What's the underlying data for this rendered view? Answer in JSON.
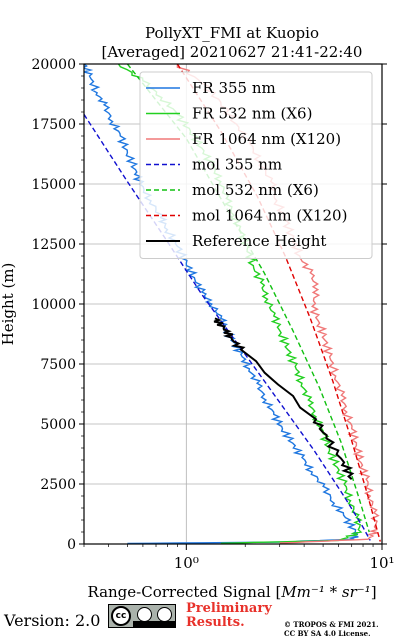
{
  "chart_data": {
    "type": "line",
    "title": "PollyXT_FMI at Kuopio",
    "subtitle": "[Averaged] 20210627 21:41-22:40",
    "xlabel": "Range-Corrected Signal [Mm⁻¹ * sr⁻¹]",
    "xlabel_plain": "Range-Corrected Signal [",
    "xlabel_math": "Mm⁻¹ * sr⁻¹",
    "xlabel_end": "]",
    "ylabel": "Height (m)",
    "xscale": "log",
    "xlim": [
      0.3,
      10
    ],
    "ylim": [
      0,
      20000
    ],
    "xticks": [
      1,
      10
    ],
    "xtick_labels": [
      "10⁰",
      "10¹"
    ],
    "yticks": [
      0,
      2500,
      5000,
      7500,
      10000,
      12500,
      15000,
      17500,
      20000
    ],
    "grid": true,
    "legend_position": "top-right",
    "series": [
      {
        "name": "FR 355 nm",
        "style": "solid",
        "color": "#1f77e0",
        "points": [
          [
            0.3,
            20000
          ],
          [
            0.32,
            19500
          ],
          [
            0.35,
            18800
          ],
          [
            0.38,
            18300
          ],
          [
            0.42,
            17600
          ],
          [
            0.46,
            17000
          ],
          [
            0.5,
            16300
          ],
          [
            0.55,
            15600
          ],
          [
            0.58,
            15000
          ],
          [
            0.66,
            14300
          ],
          [
            0.74,
            13600
          ],
          [
            0.8,
            13100
          ],
          [
            0.9,
            12400
          ],
          [
            1.0,
            11700
          ],
          [
            1.1,
            11100
          ],
          [
            1.2,
            10500
          ],
          [
            1.35,
            10000
          ],
          [
            1.5,
            9400
          ],
          [
            1.6,
            8900
          ],
          [
            1.75,
            8400
          ],
          [
            1.9,
            7900
          ],
          [
            2.1,
            7300
          ],
          [
            2.3,
            6700
          ],
          [
            2.55,
            6000
          ],
          [
            2.8,
            5400
          ],
          [
            3.1,
            4800
          ],
          [
            3.5,
            4200
          ],
          [
            3.9,
            3600
          ],
          [
            4.4,
            3000
          ],
          [
            5.0,
            2400
          ],
          [
            5.7,
            1700
          ],
          [
            6.5,
            1100
          ],
          [
            7.3,
            500
          ],
          [
            7.2,
            200
          ],
          [
            3.0,
            80
          ],
          [
            0.5,
            20
          ]
        ]
      },
      {
        "name": "FR 532 nm (X6)",
        "style": "solid",
        "color": "#22d020",
        "points": [
          [
            0.45,
            20000
          ],
          [
            0.6,
            19300
          ],
          [
            0.75,
            18600
          ],
          [
            0.9,
            17900
          ],
          [
            1.05,
            17200
          ],
          [
            1.2,
            16500
          ],
          [
            1.35,
            15800
          ],
          [
            1.5,
            15100
          ],
          [
            1.6,
            14400
          ],
          [
            1.75,
            13700
          ],
          [
            1.9,
            13000
          ],
          [
            2.05,
            12300
          ],
          [
            2.2,
            11600
          ],
          [
            2.4,
            10900
          ],
          [
            2.6,
            10200
          ],
          [
            2.8,
            9500
          ],
          [
            3.05,
            8800
          ],
          [
            3.3,
            8100
          ],
          [
            3.6,
            7400
          ],
          [
            3.9,
            6700
          ],
          [
            4.2,
            6000
          ],
          [
            4.6,
            5300
          ],
          [
            5.0,
            4600
          ],
          [
            5.4,
            3900
          ],
          [
            5.9,
            3200
          ],
          [
            6.4,
            2500
          ],
          [
            6.9,
            1800
          ],
          [
            7.4,
            1100
          ],
          [
            7.8,
            500
          ],
          [
            6.0,
            150
          ],
          [
            1.5,
            30
          ]
        ]
      },
      {
        "name": "FR 1064 nm (X120)",
        "style": "solid",
        "color": "#f07878",
        "points": [
          [
            0.9,
            20000
          ],
          [
            1.2,
            19200
          ],
          [
            1.5,
            18400
          ],
          [
            1.8,
            17500
          ],
          [
            2.1,
            16700
          ],
          [
            2.4,
            15900
          ],
          [
            2.7,
            15100
          ],
          [
            2.9,
            14300
          ],
          [
            3.2,
            13500
          ],
          [
            3.5,
            12700
          ],
          [
            3.8,
            12000
          ],
          [
            4.3,
            11300
          ],
          [
            4.7,
            10600
          ],
          [
            4.4,
            9900
          ],
          [
            4.8,
            9200
          ],
          [
            5.1,
            8500
          ],
          [
            5.4,
            7800
          ],
          [
            5.8,
            7000
          ],
          [
            6.2,
            6200
          ],
          [
            6.6,
            5500
          ],
          [
            7.0,
            4800
          ],
          [
            7.4,
            4100
          ],
          [
            7.8,
            3400
          ],
          [
            8.3,
            2700
          ],
          [
            8.7,
            2000
          ],
          [
            9.1,
            1300
          ],
          [
            9.4,
            600
          ],
          [
            8.5,
            200
          ],
          [
            3.0,
            40
          ]
        ]
      },
      {
        "name": "mol 355 nm",
        "style": "dashed",
        "color": "#1010d0",
        "points": [
          [
            0.3,
            17900
          ],
          [
            0.5,
            15100
          ],
          [
            0.8,
            12600
          ],
          [
            1.2,
            10400
          ],
          [
            2.0,
            7900
          ],
          [
            3.0,
            5900
          ],
          [
            4.5,
            3900
          ],
          [
            6.5,
            1900
          ],
          [
            8.0,
            700
          ],
          [
            8.7,
            150
          ]
        ]
      },
      {
        "name": "mol 532 nm (X6)",
        "style": "dashed",
        "color": "#10c010",
        "points": [
          [
            0.5,
            20000
          ],
          [
            1.0,
            16900
          ],
          [
            1.6,
            14000
          ],
          [
            2.5,
            11300
          ],
          [
            3.5,
            8900
          ],
          [
            4.8,
            6500
          ],
          [
            6.2,
            4200
          ],
          [
            7.5,
            2100
          ],
          [
            8.6,
            500
          ]
        ]
      },
      {
        "name": "mol 1064 nm (X120)",
        "style": "dashed",
        "color": "#e00000",
        "points": [
          [
            0.9,
            20000
          ],
          [
            1.5,
            17200
          ],
          [
            2.3,
            14500
          ],
          [
            3.2,
            12000
          ],
          [
            4.3,
            9400
          ],
          [
            5.6,
            6800
          ],
          [
            7.0,
            4300
          ],
          [
            8.4,
            2100
          ],
          [
            9.8,
            100
          ]
        ]
      },
      {
        "name": "Reference Height",
        "style": "solid",
        "color": "#000000",
        "points": [
          [
            1.4,
            9400
          ],
          [
            1.55,
            9000
          ],
          [
            1.7,
            8600
          ],
          [
            1.9,
            8100
          ],
          [
            4.6,
            5200
          ],
          [
            5.2,
            4400
          ],
          [
            6.4,
            3400
          ],
          [
            7.0,
            2700
          ]
        ]
      }
    ]
  },
  "footer": {
    "version": "Version: 2.0",
    "preliminary_line1": "Preliminary",
    "preliminary_line2": "Results.",
    "copyright_line1": "© TROPOS & FMI 2021.",
    "copyright_line2": "CC BY SA 4.0 License.",
    "cc_badge": "cc-by-sa-icon"
  }
}
